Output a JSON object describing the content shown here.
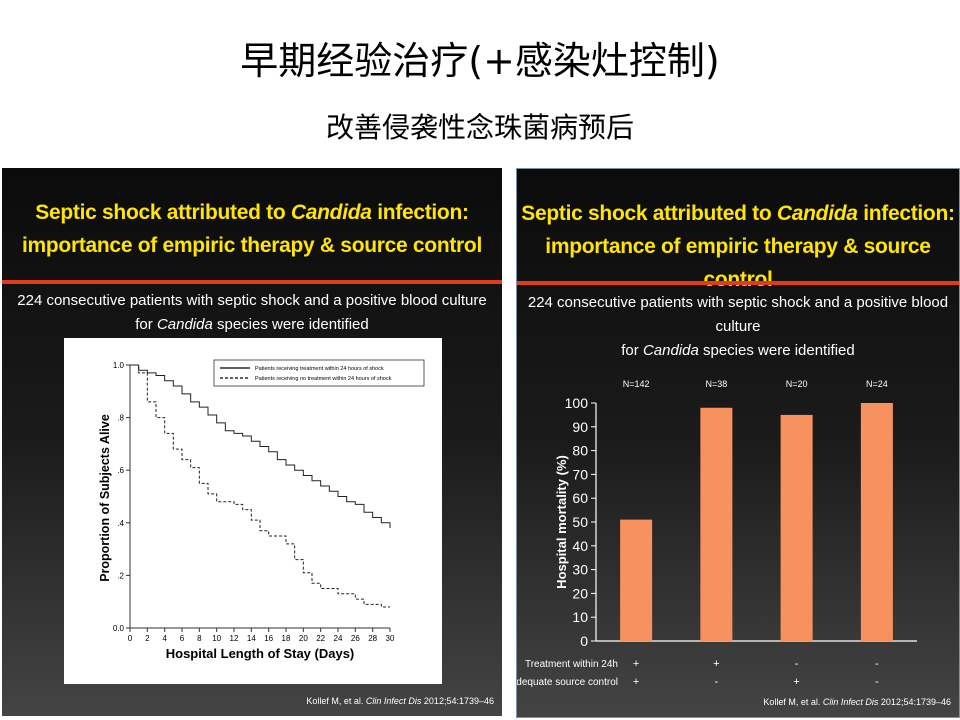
{
  "slide": {
    "title": "早期经验治疗(+感染灶控制)",
    "subtitle": "改善侵袭性念珠菌病预后"
  },
  "panels": [
    {
      "title_line1_pre": "Septic shock attributed to ",
      "title_line1_italic": "Candida",
      "title_line1_post": " infection:",
      "title_line2": "importance of empiric therapy & source control",
      "desc_line1": "224 consecutive patients with septic shock and a positive blood culture",
      "desc_line2_pre": "for ",
      "desc_line2_italic": "Candida",
      "desc_line2_post": " species were identified",
      "citation_pre": "Kollef M, et al. ",
      "citation_italic": "Clin Infect Dis",
      "citation_post": " 2012;54:1739–46"
    },
    {
      "title_line1_pre": "Septic shock attributed to ",
      "title_line1_italic": "Candida",
      "title_line1_post": " infection:",
      "title_line2": "importance of empiric therapy & source control",
      "desc_line1": "224 consecutive patients with septic shock and a positive blood culture",
      "desc_line2_pre": "for ",
      "desc_line2_italic": "Candida",
      "desc_line2_post": " species were identified",
      "citation_pre": "Kollef M, et al. ",
      "citation_italic": "Clin Infect Dis",
      "citation_post": " 2012;54:1739–46"
    }
  ],
  "chart_data": [
    {
      "type": "line",
      "xlabel": "Hospital Length of Stay (Days)",
      "ylabel": "Proportion of Subjects Alive",
      "xlim": [
        0,
        30
      ],
      "ylim": [
        0,
        1
      ],
      "x_ticks": [
        "0",
        "2",
        "4",
        "6",
        "8",
        "10",
        "12",
        "14",
        "16",
        "18",
        "20",
        "22",
        "24",
        "26",
        "28",
        "30"
      ],
      "y_ticks": [
        {
          "value": 0,
          "label": "0.0"
        },
        {
          "value": 0.2,
          "label": ".2"
        },
        {
          "value": 0.4,
          "label": ".4"
        },
        {
          "value": 0.6,
          "label": ".6"
        },
        {
          "value": 0.8,
          "label": ".8"
        },
        {
          "value": 1,
          "label": "1.0"
        }
      ],
      "grid": false,
      "legend_position": "top-right",
      "series": [
        {
          "name": "Patients receiving treatment within 24 hours of shock",
          "style": "solid",
          "x": [
            0,
            1,
            2,
            3,
            4,
            5,
            6,
            7,
            8,
            9,
            10,
            11,
            12,
            13,
            14,
            15,
            16,
            17,
            18,
            19,
            20,
            21,
            22,
            23,
            24,
            25,
            26,
            27,
            28,
            29,
            30
          ],
          "y": [
            1.0,
            0.98,
            0.97,
            0.96,
            0.94,
            0.92,
            0.89,
            0.86,
            0.84,
            0.81,
            0.78,
            0.75,
            0.74,
            0.73,
            0.71,
            0.69,
            0.67,
            0.64,
            0.62,
            0.6,
            0.58,
            0.56,
            0.54,
            0.52,
            0.5,
            0.48,
            0.47,
            0.44,
            0.42,
            0.4,
            0.38
          ]
        },
        {
          "name": "Patients receiving no treatment within 24 hours of shock",
          "style": "dashed",
          "x": [
            0,
            1,
            2,
            3,
            4,
            5,
            6,
            7,
            8,
            9,
            10,
            11,
            12,
            13,
            14,
            15,
            16,
            17,
            18,
            19,
            20,
            21,
            22,
            23,
            24,
            25,
            26,
            27,
            28,
            29,
            30
          ],
          "y": [
            1.0,
            0.97,
            0.86,
            0.8,
            0.74,
            0.68,
            0.64,
            0.61,
            0.55,
            0.51,
            0.48,
            0.48,
            0.47,
            0.45,
            0.41,
            0.37,
            0.35,
            0.35,
            0.32,
            0.26,
            0.21,
            0.17,
            0.15,
            0.15,
            0.13,
            0.13,
            0.11,
            0.09,
            0.09,
            0.08,
            0.08
          ]
        }
      ]
    },
    {
      "type": "bar",
      "ylabel": "Hospital mortality (%)",
      "ylim": [
        0,
        100
      ],
      "y_ticks": [
        0,
        10,
        20,
        30,
        40,
        50,
        60,
        70,
        80,
        90,
        100
      ],
      "categories": [
        "N=142",
        "N=38",
        "N=20",
        "N=24"
      ],
      "values": [
        51,
        98,
        95,
        100
      ],
      "bar_color": "#f7925e",
      "row_labels": [
        "Treatment within 24h",
        "Adequate source control"
      ],
      "row_values": [
        [
          "+",
          "+",
          "-",
          "-"
        ],
        [
          "+",
          "-",
          "+",
          "-"
        ]
      ]
    }
  ]
}
